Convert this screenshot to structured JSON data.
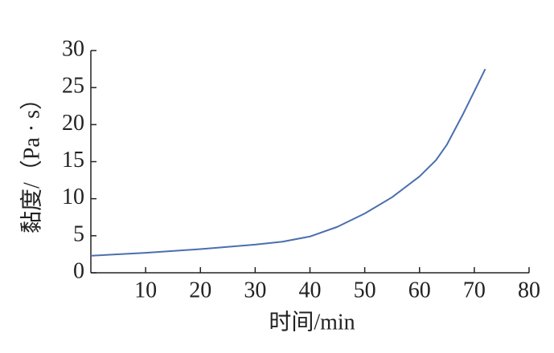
{
  "chart_data": {
    "type": "line",
    "x_label": "时间/min",
    "y_label": "黏度/（Pa · s）",
    "x": [
      0,
      10,
      20,
      30,
      35,
      40,
      45,
      50,
      55,
      60,
      63,
      65,
      68,
      70,
      72
    ],
    "series": [
      {
        "color": "#4a6fae",
        "values": [
          2.3,
          2.7,
          3.2,
          3.8,
          4.2,
          4.9,
          6.2,
          8.0,
          10.2,
          13.0,
          15.2,
          17.3,
          21.5,
          24.5,
          27.5
        ]
      }
    ],
    "xlim": [
      0,
      80
    ],
    "ylim": [
      0,
      30
    ],
    "xticks": [
      10,
      20,
      30,
      40,
      50,
      60,
      70,
      80
    ],
    "yticks": [
      0,
      5,
      10,
      15,
      20,
      25,
      30
    ]
  }
}
